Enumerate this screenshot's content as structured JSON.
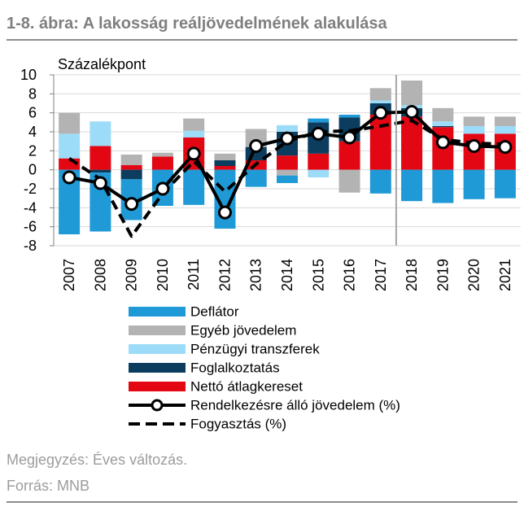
{
  "chart_data": {
    "type": "bar",
    "stacked": true,
    "title": "1-8. ábra: A lakosság reáljövedelmének alakulása",
    "ylabel": "Százalékpont",
    "xlabel": "",
    "categories": [
      "2007",
      "2008",
      "2009",
      "2010",
      "2011",
      "2012",
      "2013",
      "2014",
      "2015",
      "2016",
      "2017",
      "2018",
      "2019",
      "2020",
      "2021"
    ],
    "ylim": [
      -8,
      10
    ],
    "yticks": [
      10,
      8,
      6,
      4,
      2,
      0,
      -2,
      -4,
      -6,
      -8
    ],
    "grid": true,
    "legend_position": "bottom",
    "vertical_line_at": 2017.5,
    "series": [
      {
        "name": "Deflátor",
        "kind": "bar",
        "color": "#1f9ad6",
        "values": [
          -6.8,
          -6.2,
          -4.3,
          -3.8,
          -3.7,
          -6.2,
          -1.8,
          -0.8,
          0.4,
          0.3,
          -2.5,
          -3.3,
          -3.5,
          -3.1,
          -3.0
        ]
      },
      {
        "name": "Egyéb jövedelem",
        "kind": "bar",
        "color": "#b3b3b3",
        "values": [
          2.2,
          0,
          1.1,
          0.4,
          1.3,
          0.7,
          1.9,
          -0.6,
          0,
          -2.4,
          1.3,
          2.6,
          1.4,
          1.0,
          1.0
        ]
      },
      {
        "name": "Pénzügyi transzferek",
        "kind": "bar",
        "color": "#9ddcf8",
        "values": [
          2.6,
          2.6,
          0,
          0,
          0.7,
          0,
          0,
          0.7,
          -0.8,
          0,
          0.3,
          0.3,
          0.5,
          0.8,
          0.8
        ]
      },
      {
        "name": "Foglalkoztatás",
        "kind": "bar",
        "color": "#0c3d5e",
        "values": [
          0,
          -0.3,
          -1.0,
          0,
          0,
          0.6,
          1.4,
          2.5,
          3.3,
          2.5,
          1.2,
          0.9,
          0.1,
          0,
          0
        ]
      },
      {
        "name": "Nettó átlagkereset",
        "kind": "bar",
        "color": "#e30613",
        "values": [
          1.2,
          2.5,
          0.5,
          1.4,
          3.4,
          0.4,
          1.0,
          1.5,
          1.7,
          3.0,
          5.8,
          5.6,
          4.5,
          3.8,
          3.8
        ]
      },
      {
        "name": "Rendelkezésre álló jövedelem (%)",
        "kind": "line",
        "line_style": "solid",
        "markers": true,
        "color": "#000000",
        "values": [
          -0.8,
          -1.4,
          -3.6,
          -2.0,
          1.7,
          -4.5,
          2.5,
          3.3,
          3.8,
          3.4,
          6.0,
          6.1,
          2.9,
          2.5,
          2.4
        ]
      },
      {
        "name": "Fogyasztás (%)",
        "kind": "line",
        "line_style": "dashed",
        "markers": false,
        "color": "#000000",
        "values": [
          1.2,
          -1.0,
          -7.0,
          -2.5,
          0.9,
          -2.3,
          0.6,
          3.0,
          4.0,
          4.1,
          4.6,
          5.2,
          3.2,
          2.8,
          2.7
        ]
      }
    ]
  },
  "note": "Megjegyzés: Éves változás.",
  "source": "Forrás: MNB"
}
